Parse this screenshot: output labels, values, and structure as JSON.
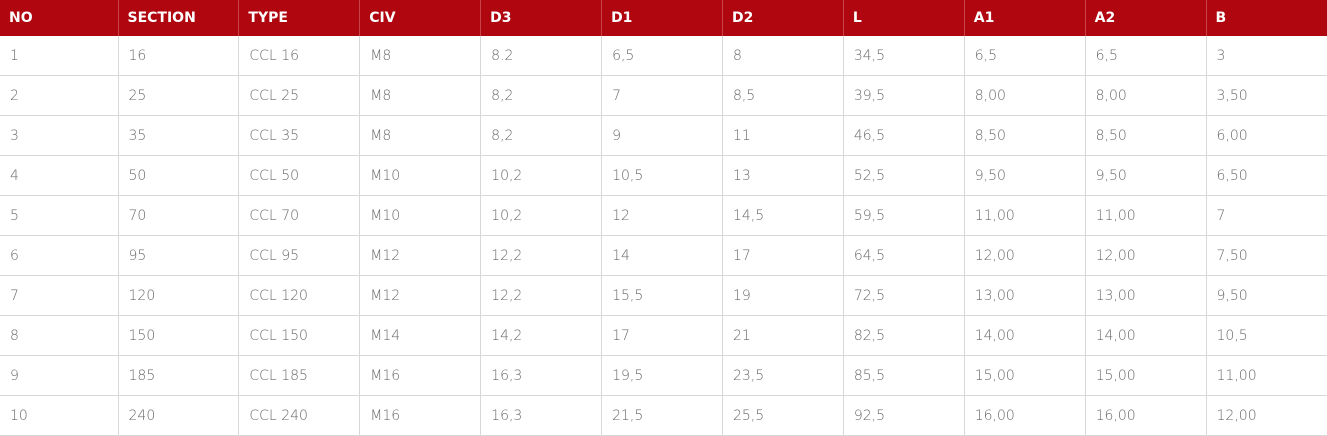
{
  "table": {
    "header": [
      "NO",
      "SECTION",
      "TYPE",
      "CIV",
      "D3",
      "D1",
      "D2",
      "L",
      "A1",
      "A2",
      "B"
    ],
    "rows": [
      [
        "1",
        "16",
        "CCL 16",
        "M8",
        "8.2",
        "6,5",
        "8",
        "34,5",
        "6,5",
        "6,5",
        "3"
      ],
      [
        "2",
        "25",
        "CCL 25",
        "M8",
        "8,2",
        "7",
        "8,5",
        "39,5",
        "8,00",
        "8,00",
        "3,50"
      ],
      [
        "3",
        "35",
        "CCL 35",
        "M8",
        "8,2",
        "9",
        "11",
        "46,5",
        "8,50",
        "8,50",
        "6,00"
      ],
      [
        "4",
        "50",
        "CCL 50",
        "M10",
        "10,2",
        "10,5",
        "13",
        "52,5",
        "9,50",
        "9,50",
        "6,50"
      ],
      [
        "5",
        "70",
        "CCL 70",
        "M10",
        "10,2",
        "12",
        "14,5",
        "59,5",
        "11,00",
        "11,00",
        "7"
      ],
      [
        "6",
        "95",
        "CCL 95",
        "M12",
        "12,2",
        "14",
        "17",
        "64,5",
        "12,00",
        "12,00",
        "7,50"
      ],
      [
        "7",
        "120",
        "CCL 120",
        "M12",
        "12,2",
        "15,5",
        "19",
        "72,5",
        "13,00",
        "13,00",
        "9,50"
      ],
      [
        "8",
        "150",
        "CCL 150",
        "M14",
        "14,2",
        "17",
        "21",
        "82,5",
        "14,00",
        "14,00",
        "10,5"
      ],
      [
        "9",
        "185",
        "CCL 185",
        "M16",
        "16,3",
        "19,5",
        "23,5",
        "85,5",
        "15,00",
        "15,00",
        "11,00"
      ],
      [
        "10",
        "240",
        "CCL 240",
        "M16",
        "16,3",
        "21,5",
        "25,5",
        "92,5",
        "16,00",
        "16,00",
        "12,00"
      ]
    ]
  }
}
